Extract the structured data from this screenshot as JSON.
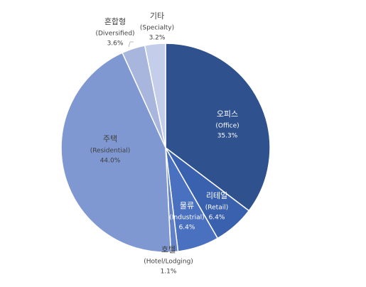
{
  "chart_data": {
    "type": "pie",
    "categories": [
      "오피스",
      "리테일",
      "물류",
      "호텔",
      "주택",
      "혼합형",
      "기타"
    ],
    "subcategories": [
      "(Office)",
      "(Retail)",
      "(Industrial)",
      "(Hotel/Lodging)",
      "(Residential)",
      "(Diversified)",
      "(Specialty)"
    ],
    "values": [
      35.3,
      6.4,
      6.4,
      1.1,
      44.0,
      3.6,
      3.2
    ],
    "value_labels": [
      "35.3%",
      "6.4%",
      "6.4%",
      "1.1%",
      "44.0%",
      "3.6%",
      "3.2%"
    ],
    "colors": [
      "#2f528f",
      "#3a61ad",
      "#4a70c0",
      "#6381c9",
      "#7f98d1",
      "#a8b6dd",
      "#c4cde9"
    ]
  }
}
